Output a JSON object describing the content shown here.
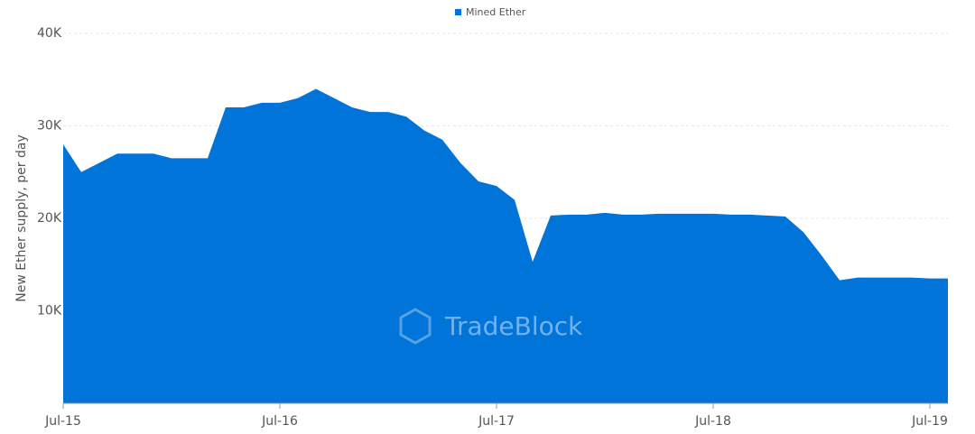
{
  "chart_data": {
    "type": "area",
    "legend": "Mined Ether",
    "y_label": "New Ether supply, per day",
    "watermark": "TradeBlock",
    "color": "#0074d9",
    "grid": true,
    "xlim": [
      "2015-07",
      "2019-08"
    ],
    "xticks": [
      {
        "value": "2015-07",
        "label": "Jul-15"
      },
      {
        "value": "2016-07",
        "label": "Jul-16"
      },
      {
        "value": "2017-07",
        "label": "Jul-17"
      },
      {
        "value": "2018-07",
        "label": "Jul-18"
      },
      {
        "value": "2019-07",
        "label": "Jul-19"
      }
    ],
    "ylim": [
      0,
      40000
    ],
    "yticks": [
      {
        "value": 10000,
        "label": "10K"
      },
      {
        "value": 20000,
        "label": "20K"
      },
      {
        "value": 30000,
        "label": "30K"
      },
      {
        "value": 40000,
        "label": "40K"
      }
    ],
    "x": [
      "2015-07",
      "2015-08",
      "2015-09",
      "2015-10",
      "2015-11",
      "2015-12",
      "2016-01",
      "2016-02",
      "2016-03",
      "2016-04",
      "2016-05",
      "2016-06",
      "2016-07",
      "2016-08",
      "2016-09",
      "2016-10",
      "2016-11",
      "2016-12",
      "2017-01",
      "2017-02",
      "2017-03",
      "2017-04",
      "2017-05",
      "2017-06",
      "2017-07",
      "2017-08",
      "2017-09",
      "2017-10",
      "2017-11",
      "2017-12",
      "2018-01",
      "2018-02",
      "2018-03",
      "2018-04",
      "2018-05",
      "2018-06",
      "2018-07",
      "2018-08",
      "2018-09",
      "2018-10",
      "2018-11",
      "2018-12",
      "2019-01",
      "2019-02",
      "2019-03",
      "2019-04",
      "2019-05",
      "2019-06",
      "2019-07",
      "2019-08"
    ],
    "values": [
      28000,
      25000,
      26000,
      27000,
      27000,
      27000,
      26500,
      26500,
      26500,
      32000,
      32000,
      32500,
      32500,
      33000,
      34000,
      33000,
      32000,
      31500,
      31500,
      31000,
      29500,
      28500,
      26000,
      24000,
      23500,
      22000,
      15300,
      20300,
      20400,
      20400,
      20600,
      20400,
      20400,
      20500,
      20500,
      20500,
      20500,
      20400,
      20400,
      20300,
      20200,
      18500,
      16000,
      13300,
      13600,
      13600,
      13600,
      13600,
      13500,
      13500
    ]
  }
}
